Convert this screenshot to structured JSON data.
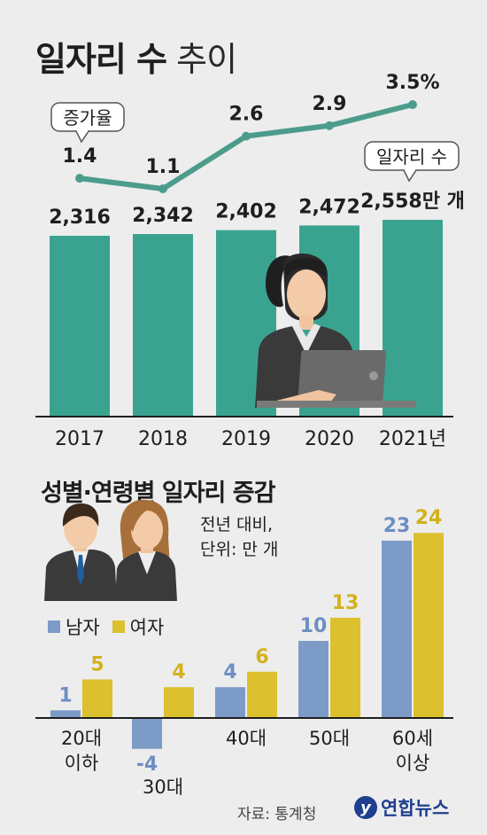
{
  "title": {
    "bold": "일자리 수",
    "light": "추이"
  },
  "chart_data": [
    {
      "type": "bar",
      "categories": [
        "2017",
        "2018",
        "2019",
        "2020",
        "2021년"
      ],
      "values": [
        2316,
        2342,
        2402,
        2472,
        2558
      ],
      "value_labels": [
        "2,316",
        "2,342",
        "2,402",
        "2,472",
        "2,558만 개"
      ],
      "series_callout": "일자리 수",
      "line_series": {
        "callout": "증가율",
        "values": [
          1.4,
          1.1,
          2.6,
          2.9,
          3.5
        ],
        "value_labels": [
          "1.4",
          "1.1",
          "2.6",
          "2.9",
          "3.5%"
        ]
      },
      "colors": {
        "bar": "#3aa390",
        "line": "#4c9c8c"
      }
    },
    {
      "type": "bar",
      "title": "성별·연령별 일자리 증감",
      "note": "전년 대비,\n단위: 만 개",
      "categories": [
        "20대\n이하",
        "30대",
        "40대",
        "50대",
        "60세\n이상"
      ],
      "series": [
        {
          "name": "남자",
          "values": [
            1,
            -4,
            4,
            10,
            23
          ],
          "color": "#7d9bc7"
        },
        {
          "name": "여자",
          "values": [
            5,
            4,
            6,
            13,
            24
          ],
          "color": "#dcc02e"
        }
      ]
    }
  ],
  "source": "자료: 통계청",
  "brand": "연합뉴스"
}
